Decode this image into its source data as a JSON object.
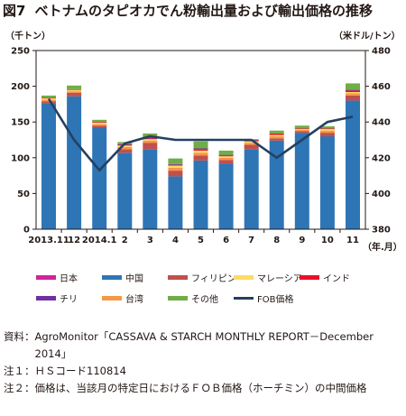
{
  "figure": {
    "number": "図7",
    "title": "ベトナムのタピオカでん粉輸出量および輸出価格の推移"
  },
  "chart_data": {
    "type": "bar",
    "stacked": true,
    "left_axis_unit": "（千トン）",
    "right_axis_unit": "（米ドル/トン）",
    "x_unit": "（年.月）",
    "categories": [
      "2013.11",
      "12",
      "2014.1",
      "2",
      "3",
      "4",
      "5",
      "6",
      "7",
      "8",
      "9",
      "10",
      "11"
    ],
    "left_ylim": [
      0,
      250
    ],
    "left_yticks": [
      0,
      50,
      100,
      150,
      200,
      250
    ],
    "right_ylim": [
      380,
      480
    ],
    "right_yticks": [
      380,
      400,
      420,
      440,
      460,
      480
    ],
    "grid": false,
    "series": [
      {
        "name": "中国",
        "color": "#2e75b6",
        "values": [
          176,
          186,
          142,
          107,
          112,
          74,
          96,
          92,
          112,
          124,
          135,
          130,
          180
        ]
      },
      {
        "name": "フィリピン",
        "color": "#c0504d",
        "values": [
          3,
          5,
          3,
          5,
          9,
          8,
          7,
          5,
          6,
          3,
          2,
          5,
          7
        ]
      },
      {
        "name": "台湾",
        "color": "#f79646",
        "values": [
          2,
          2,
          2,
          3,
          3,
          4,
          4,
          3,
          3,
          3,
          2,
          3,
          3
        ]
      },
      {
        "name": "マレーシア",
        "color": "#ffd966",
        "values": [
          2,
          2,
          2,
          2,
          2,
          3,
          3,
          2,
          2,
          2,
          1,
          2,
          2
        ]
      },
      {
        "name": "インド",
        "color": "#e8112d",
        "values": [
          1,
          1,
          1,
          1,
          1,
          1,
          2,
          1,
          1,
          2,
          1,
          1,
          2
        ]
      },
      {
        "name": "チリ",
        "color": "#7030a0",
        "values": [
          0,
          0,
          0,
          1,
          1,
          1,
          1,
          1,
          1,
          0,
          0,
          0,
          1
        ]
      },
      {
        "name": "日本",
        "color": "#d2239a",
        "values": [
          0,
          0,
          0,
          0,
          1,
          0,
          0,
          0,
          0,
          0,
          0,
          0,
          0
        ]
      },
      {
        "name": "その他",
        "color": "#70ad47",
        "values": [
          3,
          5,
          3,
          3,
          5,
          8,
          10,
          6,
          1,
          4,
          4,
          3,
          9
        ]
      }
    ],
    "line": {
      "name": "FOB価格",
      "color": "#244062",
      "axis": "right",
      "values": [
        453,
        430,
        413,
        428,
        432,
        430,
        430,
        430,
        430,
        420,
        430,
        440,
        443
      ]
    }
  },
  "legend": [
    [
      "日本",
      "中国",
      "フィリピン",
      "マレーシア",
      "インド"
    ],
    [
      "チリ",
      "台湾",
      "その他",
      "FOB価格"
    ]
  ],
  "notes": [
    {
      "label": "資料：",
      "text": "AgroMonitor「CASSAVA & STARCH MONTHLY REPORT－December 2014」"
    },
    {
      "label": "注１：",
      "text": "ＨＳコード110814"
    },
    {
      "label": "注２：",
      "text": "価格は、当該月の特定日におけるＦＯＢ価格（ホーチミン）の中間価格"
    }
  ]
}
